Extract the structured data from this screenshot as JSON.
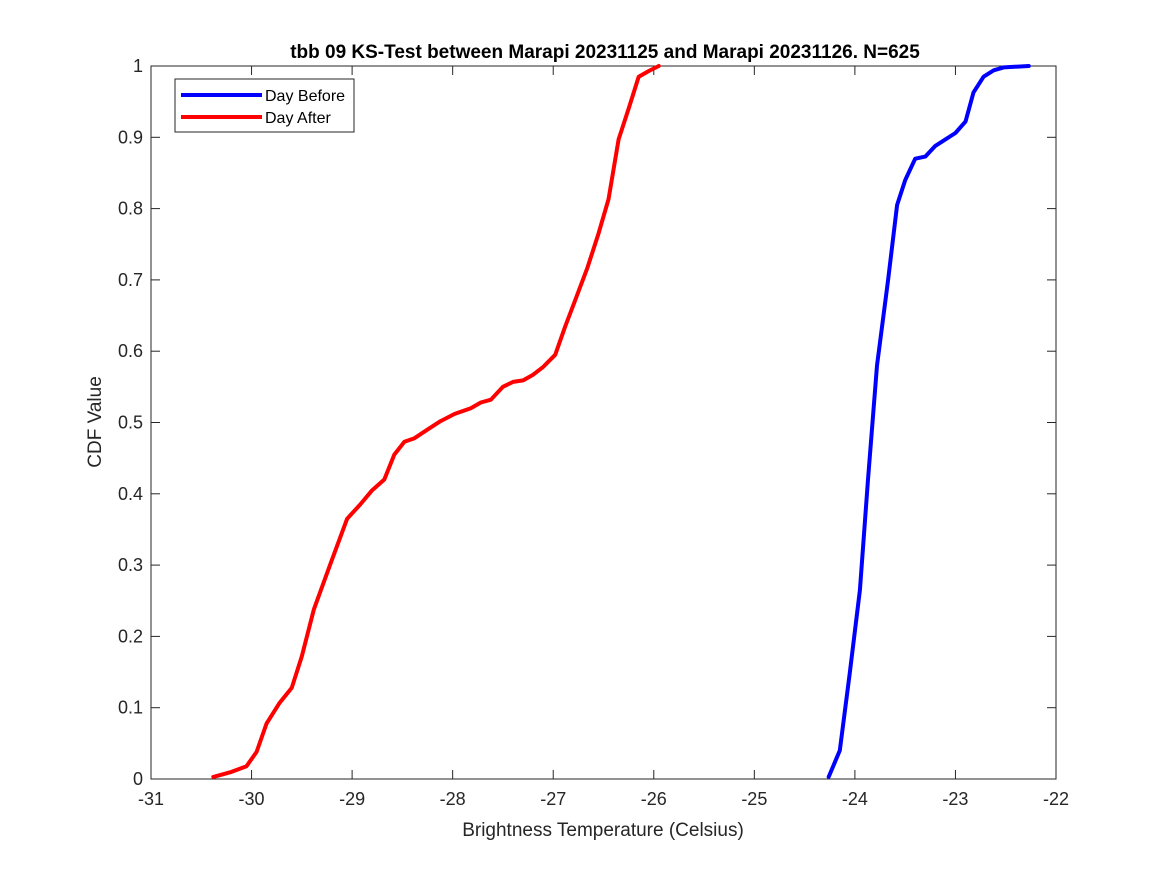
{
  "chart_data": {
    "type": "line",
    "title": "tbb 09 KS-Test between Marapi 20231125 and Marapi 20231126. N=625",
    "xlabel": "Brightness Temperature (Celsius)",
    "ylabel": "CDF Value",
    "xlim": [
      -31,
      -22
    ],
    "ylim": [
      0,
      1
    ],
    "xticks": [
      -31,
      -30,
      -29,
      -28,
      -27,
      -26,
      -25,
      -24,
      -23,
      -22
    ],
    "yticks": [
      0,
      0.1,
      0.2,
      0.3,
      0.4,
      0.5,
      0.6,
      0.7,
      0.8,
      0.9,
      1
    ],
    "xtick_labels": [
      "-31",
      "-30",
      "-29",
      "-28",
      "-27",
      "-26",
      "-25",
      "-24",
      "-23",
      "-22"
    ],
    "ytick_labels": [
      "0",
      "0.1",
      "0.2",
      "0.3",
      "0.4",
      "0.5",
      "0.6",
      "0.7",
      "0.8",
      "0.9",
      "1"
    ],
    "grid": false,
    "legend_position": "top-left",
    "series": [
      {
        "name": "Day Before",
        "color": "#0000ff",
        "x": [
          -24.26,
          -24.15,
          -24.05,
          -23.95,
          -23.87,
          -23.78,
          -23.67,
          -23.58,
          -23.5,
          -23.4,
          -23.3,
          -23.2,
          -23.1,
          -23.0,
          -22.9,
          -22.82,
          -22.72,
          -22.62,
          -22.52,
          -22.27
        ],
        "y": [
          0.003,
          0.04,
          0.15,
          0.265,
          0.42,
          0.58,
          0.7,
          0.805,
          0.84,
          0.87,
          0.873,
          0.888,
          0.897,
          0.906,
          0.922,
          0.963,
          0.985,
          0.994,
          0.998,
          1.0
        ]
      },
      {
        "name": "Day After",
        "color": "#ff0000",
        "x": [
          -30.38,
          -30.2,
          -30.05,
          -29.95,
          -29.85,
          -29.72,
          -29.6,
          -29.5,
          -29.38,
          -29.22,
          -29.05,
          -28.92,
          -28.8,
          -28.68,
          -28.58,
          -28.48,
          -28.38,
          -28.25,
          -28.12,
          -27.98,
          -27.82,
          -27.72,
          -27.62,
          -27.5,
          -27.4,
          -27.3,
          -27.2,
          -27.1,
          -26.98,
          -26.88,
          -26.78,
          -26.66,
          -26.55,
          -26.45,
          -26.35,
          -26.25,
          -26.15,
          -26.05,
          -25.95
        ],
        "y": [
          0.003,
          0.01,
          0.018,
          0.038,
          0.078,
          0.107,
          0.128,
          0.172,
          0.238,
          0.3,
          0.365,
          0.385,
          0.405,
          0.42,
          0.455,
          0.473,
          0.478,
          0.49,
          0.502,
          0.512,
          0.52,
          0.528,
          0.532,
          0.55,
          0.557,
          0.559,
          0.567,
          0.578,
          0.595,
          0.635,
          0.672,
          0.717,
          0.765,
          0.813,
          0.897,
          0.94,
          0.985,
          0.993,
          1.0
        ]
      }
    ]
  }
}
